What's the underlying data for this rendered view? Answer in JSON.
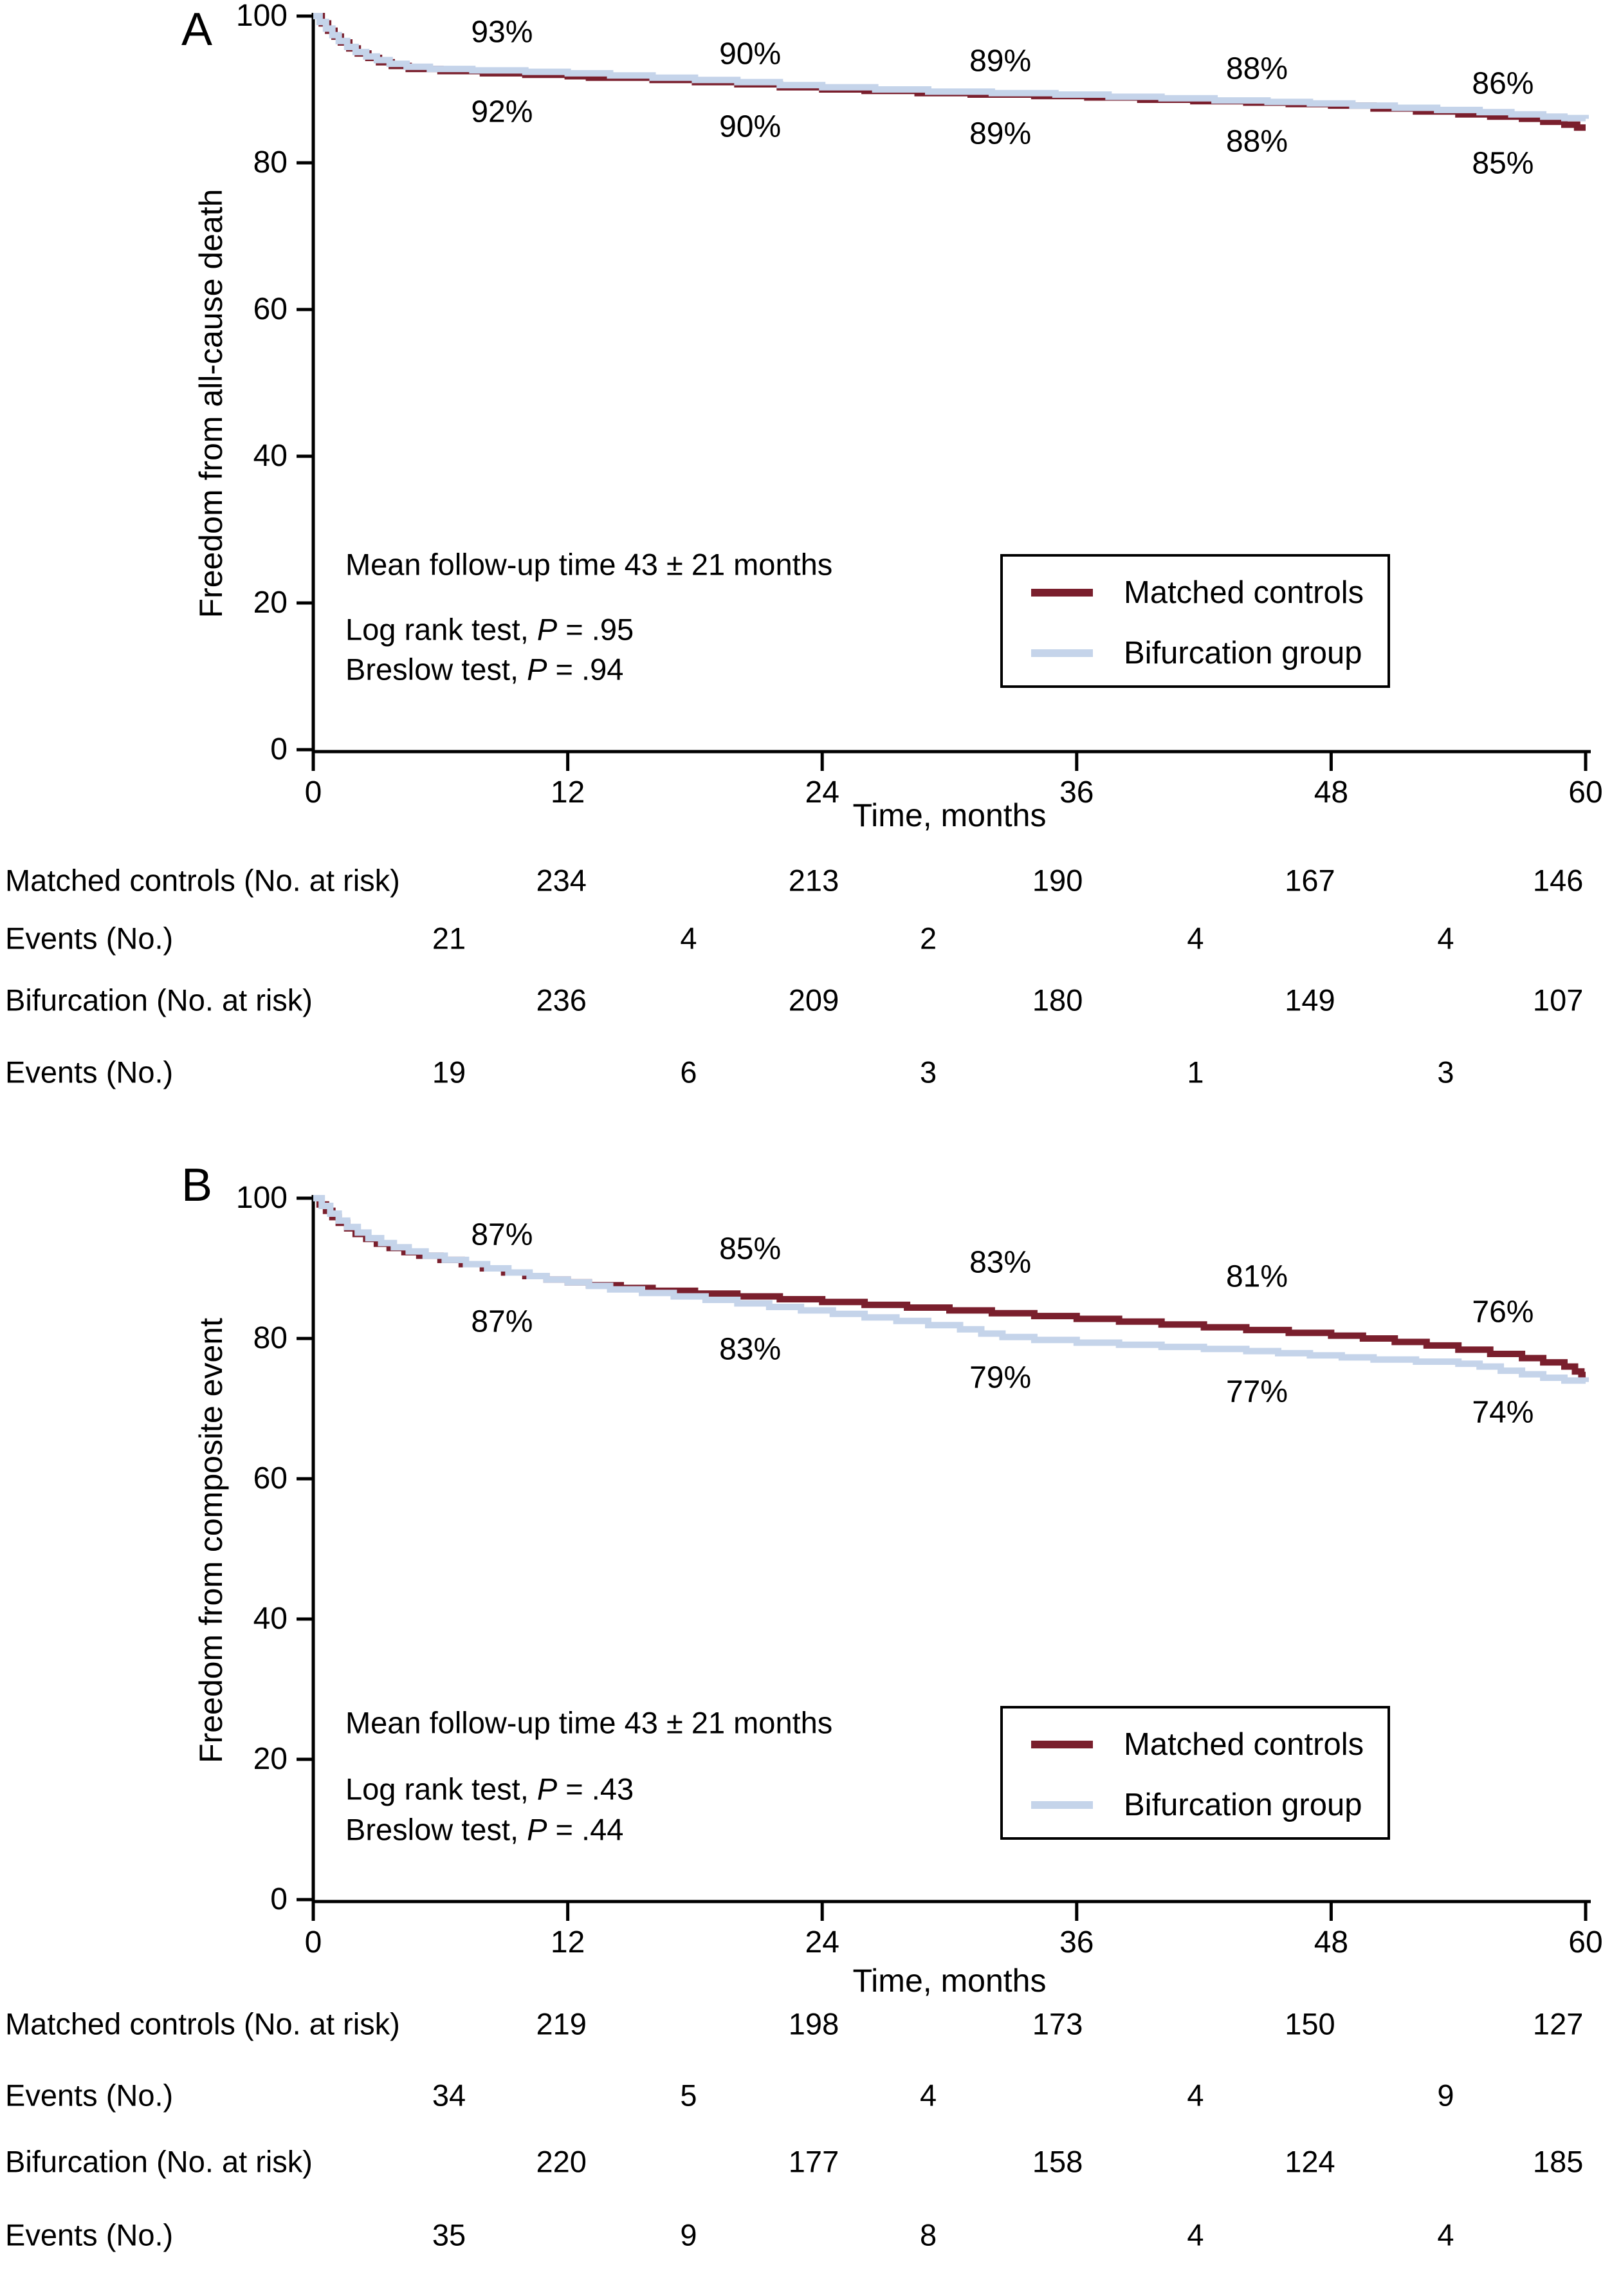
{
  "colors": {
    "matched_controls": "#7a1f2d",
    "bifurcation": "#c5d4ea",
    "axis": "#000000",
    "text": "#000000",
    "background": "#ffffff"
  },
  "legend": {
    "items": [
      {
        "label": "Matched controls",
        "color_key": "matched_controls"
      },
      {
        "label": "Bifurcation group",
        "color_key": "bifurcation"
      }
    ]
  },
  "chart_data": [
    {
      "type": "line",
      "subtype": "kaplan-meier-step",
      "panel_letter": "A",
      "ylabel": "Freedom from all-cause death",
      "xlabel": "Time, months",
      "xlim": [
        0,
        60
      ],
      "ylim": [
        0,
        100
      ],
      "x_ticks": [
        0,
        12,
        24,
        36,
        48,
        60
      ],
      "y_ticks": [
        100,
        80,
        60,
        40,
        20,
        0
      ],
      "grid": false,
      "legend_position": "lower-right-box",
      "stats": [
        {
          "pre": "Mean follow-up time 43 ± 21 months",
          "p": "",
          "post": ""
        },
        {
          "pre": "Log rank test, ",
          "p": "P",
          "post": " = .95"
        },
        {
          "pre": "Breslow test, ",
          "p": "P",
          "post": " = .94"
        }
      ],
      "annotation_months": [
        8.9,
        20.6,
        32.4,
        44.5,
        56.1
      ],
      "annotations_top": [
        {
          "label": "93%",
          "value": 93
        },
        {
          "label": "90%",
          "value": 90
        },
        {
          "label": "89%",
          "value": 89
        },
        {
          "label": "88%",
          "value": 88
        },
        {
          "label": "86%",
          "value": 86
        }
      ],
      "annotations_bottom": [
        {
          "label": "92%",
          "value": 92
        },
        {
          "label": "90%",
          "value": 90
        },
        {
          "label": "89%",
          "value": 89
        },
        {
          "label": "88%",
          "value": 88
        },
        {
          "label": "85%",
          "value": 85
        }
      ],
      "series": [
        {
          "name": "Matched controls",
          "color_key": "matched_controls",
          "points": [
            [
              0,
              100
            ],
            [
              0.4,
              99
            ],
            [
              0.7,
              98
            ],
            [
              1,
              97.2
            ],
            [
              1.3,
              96.4
            ],
            [
              1.7,
              95.6
            ],
            [
              2.1,
              94.9
            ],
            [
              2.6,
              94.3
            ],
            [
              3.1,
              93.7
            ],
            [
              3.7,
              93.2
            ],
            [
              4.5,
              92.8
            ],
            [
              6,
              92.5
            ],
            [
              8,
              92.2
            ],
            [
              10,
              92.0
            ],
            [
              12,
              91.8
            ],
            [
              13,
              91.6
            ],
            [
              16,
              91.3
            ],
            [
              18,
              91.0
            ],
            [
              20,
              90.7
            ],
            [
              22,
              90.3
            ],
            [
              24,
              90.0
            ],
            [
              26,
              89.8
            ],
            [
              28.5,
              89.5
            ],
            [
              31,
              89.3
            ],
            [
              34,
              89.1
            ],
            [
              36.5,
              88.9
            ],
            [
              39,
              88.6
            ],
            [
              41.5,
              88.4
            ],
            [
              44,
              88.2
            ],
            [
              46,
              88.0
            ],
            [
              48,
              87.8
            ],
            [
              50,
              87.4
            ],
            [
              52,
              87.0
            ],
            [
              54,
              86.6
            ],
            [
              55.5,
              86.3
            ],
            [
              57,
              86.0
            ],
            [
              58,
              85.6
            ],
            [
              59,
              85.2
            ],
            [
              59.6,
              84.8
            ],
            [
              60,
              84.8
            ]
          ]
        },
        {
          "name": "Bifurcation group",
          "color_key": "bifurcation",
          "points": [
            [
              0,
              100
            ],
            [
              0.3,
              99.2
            ],
            [
              0.6,
              98.3
            ],
            [
              0.9,
              97.4
            ],
            [
              1.2,
              96.6
            ],
            [
              1.6,
              95.8
            ],
            [
              2,
              95.1
            ],
            [
              2.5,
              94.5
            ],
            [
              3,
              94.0
            ],
            [
              3.6,
              93.5
            ],
            [
              4.4,
              93.1
            ],
            [
              5.5,
              92.8
            ],
            [
              7.5,
              92.6
            ],
            [
              10,
              92.4
            ],
            [
              12,
              92.2
            ],
            [
              14,
              91.9
            ],
            [
              16,
              91.6
            ],
            [
              18,
              91.3
            ],
            [
              20,
              91.0
            ],
            [
              22,
              90.6
            ],
            [
              24,
              90.3
            ],
            [
              26.5,
              90.0
            ],
            [
              29,
              89.7
            ],
            [
              32,
              89.5
            ],
            [
              35,
              89.3
            ],
            [
              37.5,
              89.0
            ],
            [
              40,
              88.8
            ],
            [
              42.5,
              88.5
            ],
            [
              45,
              88.3
            ],
            [
              47,
              88.1
            ],
            [
              49,
              87.8
            ],
            [
              51,
              87.5
            ],
            [
              53,
              87.2
            ],
            [
              55,
              86.9
            ],
            [
              56.5,
              86.6
            ],
            [
              58,
              86.3
            ],
            [
              59,
              86.1
            ],
            [
              60,
              86.0
            ]
          ]
        }
      ],
      "risk_table": [
        {
          "label": "Matched controls (No. at risk)",
          "kind": "risk",
          "values": [
            "234",
            "213",
            "190",
            "167",
            "146"
          ]
        },
        {
          "label": "Events (No.)",
          "kind": "events",
          "values": [
            "21",
            "4",
            "2",
            "4",
            "4"
          ]
        },
        {
          "label": "Bifurcation (No. at risk)",
          "kind": "risk",
          "values": [
            "236",
            "209",
            "180",
            "149",
            "107"
          ]
        },
        {
          "label": "Events (No.)",
          "kind": "events",
          "values": [
            "19",
            "6",
            "3",
            "1",
            "3"
          ]
        }
      ]
    },
    {
      "type": "line",
      "subtype": "kaplan-meier-step",
      "panel_letter": "B",
      "ylabel": "Freedom from composite event",
      "xlabel": "Time, months",
      "xlim": [
        0,
        60
      ],
      "ylim": [
        0,
        100
      ],
      "x_ticks": [
        0,
        12,
        24,
        36,
        48,
        60
      ],
      "y_ticks": [
        100,
        80,
        60,
        40,
        20,
        0
      ],
      "grid": false,
      "legend_position": "lower-right-box",
      "stats": [
        {
          "pre": "Mean follow-up time 43 ± 21 months",
          "p": "",
          "post": ""
        },
        {
          "pre": "Log rank test, ",
          "p": "P",
          "post": " = .43"
        },
        {
          "pre": "Breslow test, ",
          "p": "P",
          "post": " = .44"
        }
      ],
      "annotation_months": [
        8.9,
        20.6,
        32.4,
        44.5,
        56.1
      ],
      "annotations_top": [
        {
          "label": "87%",
          "value": 87
        },
        {
          "label": "85%",
          "value": 85
        },
        {
          "label": "83%",
          "value": 83
        },
        {
          "label": "81%",
          "value": 81
        },
        {
          "label": "76%",
          "value": 76
        }
      ],
      "annotations_bottom": [
        {
          "label": "87%",
          "value": 87
        },
        {
          "label": "83%",
          "value": 83
        },
        {
          "label": "79%",
          "value": 79
        },
        {
          "label": "77%",
          "value": 77
        },
        {
          "label": "74%",
          "value": 74
        }
      ],
      "series": [
        {
          "name": "Matched controls",
          "color_key": "matched_controls",
          "points": [
            [
              0,
              100
            ],
            [
              0.3,
              99.1
            ],
            [
              0.6,
              98.2
            ],
            [
              0.9,
              97.3
            ],
            [
              1.2,
              96.5
            ],
            [
              1.6,
              95.7
            ],
            [
              2,
              94.9
            ],
            [
              2.5,
              94.2
            ],
            [
              3,
              93.5
            ],
            [
              3.6,
              92.9
            ],
            [
              4.3,
              92.3
            ],
            [
              5,
              91.8
            ],
            [
              6,
              91.2
            ],
            [
              7,
              90.6
            ],
            [
              8,
              90.0
            ],
            [
              9,
              89.4
            ],
            [
              10,
              88.9
            ],
            [
              11,
              88.4
            ],
            [
              12,
              88.0
            ],
            [
              13,
              87.6
            ],
            [
              14.5,
              87.2
            ],
            [
              16,
              86.8
            ],
            [
              18,
              86.4
            ],
            [
              20,
              86.0
            ],
            [
              22,
              85.6
            ],
            [
              24,
              85.2
            ],
            [
              26,
              84.8
            ],
            [
              28,
              84.4
            ],
            [
              30,
              84.0
            ],
            [
              32,
              83.6
            ],
            [
              34,
              83.2
            ],
            [
              36,
              82.8
            ],
            [
              38,
              82.4
            ],
            [
              40,
              82.0
            ],
            [
              42,
              81.6
            ],
            [
              44,
              81.2
            ],
            [
              46,
              80.8
            ],
            [
              48,
              80.4
            ],
            [
              49.5,
              80.0
            ],
            [
              51,
              79.5
            ],
            [
              52.5,
              79.0
            ],
            [
              54,
              78.4
            ],
            [
              55.5,
              77.8
            ],
            [
              57,
              77.2
            ],
            [
              58,
              76.6
            ],
            [
              59,
              76.0
            ],
            [
              59.5,
              75.3
            ],
            [
              59.8,
              74.8
            ],
            [
              60,
              74.8
            ]
          ]
        },
        {
          "name": "Bifurcation group",
          "color_key": "bifurcation",
          "points": [
            [
              0,
              100
            ],
            [
              0.4,
              98.9
            ],
            [
              0.8,
              97.8
            ],
            [
              1.2,
              96.8
            ],
            [
              1.6,
              95.9
            ],
            [
              2.1,
              95.1
            ],
            [
              2.6,
              94.3
            ],
            [
              3.2,
              93.6
            ],
            [
              3.8,
              93.0
            ],
            [
              4.5,
              92.4
            ],
            [
              5.3,
              91.8
            ],
            [
              6.2,
              91.2
            ],
            [
              7.2,
              90.6
            ],
            [
              8.2,
              90.0
            ],
            [
              9.2,
              89.4
            ],
            [
              10.2,
              88.9
            ],
            [
              11,
              88.4
            ],
            [
              12,
              88.0
            ],
            [
              13,
              87.5
            ],
            [
              14,
              87.0
            ],
            [
              15.5,
              86.5
            ],
            [
              17,
              86.0
            ],
            [
              18.5,
              85.5
            ],
            [
              20,
              85.0
            ],
            [
              21.5,
              84.5
            ],
            [
              23,
              84.0
            ],
            [
              24.5,
              83.5
            ],
            [
              26,
              83.0
            ],
            [
              27.5,
              82.5
            ],
            [
              29,
              81.9
            ],
            [
              30.5,
              81.3
            ],
            [
              31.5,
              80.7
            ],
            [
              32.5,
              80.2
            ],
            [
              34,
              79.8
            ],
            [
              36,
              79.4
            ],
            [
              38,
              79.1
            ],
            [
              40,
              78.8
            ],
            [
              42,
              78.5
            ],
            [
              44,
              78.2
            ],
            [
              45.5,
              77.9
            ],
            [
              47,
              77.6
            ],
            [
              48.5,
              77.3
            ],
            [
              50,
              77.0
            ],
            [
              52,
              76.7
            ],
            [
              54,
              76.4
            ],
            [
              55,
              76.0
            ],
            [
              56,
              75.4
            ],
            [
              57,
              74.9
            ],
            [
              58,
              74.4
            ],
            [
              59,
              74.0
            ],
            [
              60,
              73.8
            ]
          ]
        }
      ],
      "risk_table": [
        {
          "label": "Matched controls (No. at risk)",
          "kind": "risk",
          "values": [
            "219",
            "198",
            "173",
            "150",
            "127"
          ]
        },
        {
          "label": "Events (No.)",
          "kind": "events",
          "values": [
            "34",
            "5",
            "4",
            "4",
            "9"
          ]
        },
        {
          "label": "Bifurcation (No. at risk)",
          "kind": "risk",
          "values": [
            "220",
            "177",
            "158",
            "124",
            "185"
          ]
        },
        {
          "label": "Events (No.)",
          "kind": "events",
          "values": [
            "35",
            "9",
            "8",
            "4",
            "4"
          ]
        }
      ]
    }
  ]
}
